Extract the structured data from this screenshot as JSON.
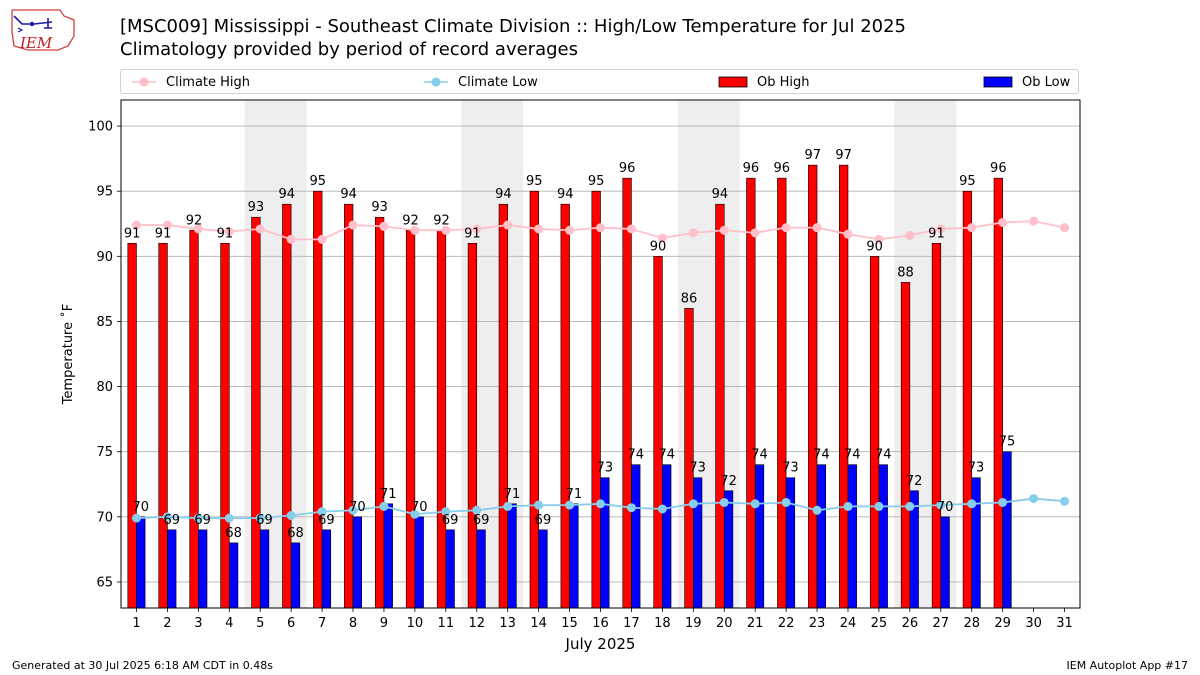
{
  "header": {
    "logo_text": "IEM",
    "title": "[MSC009] Mississippi - Southeast Climate Division :: High/Low Temperature for Jul 2025",
    "subtitle": "Climatology provided by period of record averages"
  },
  "legend": {
    "items": [
      {
        "label": "Climate High",
        "marker": "line-dot",
        "color": "#ffc0cb"
      },
      {
        "label": "Climate Low",
        "marker": "line-dot",
        "color": "#87ceeb"
      },
      {
        "label": "Ob High",
        "marker": "box",
        "color": "#ff0000"
      },
      {
        "label": "Ob Low",
        "marker": "box",
        "color": "#0000ff"
      }
    ]
  },
  "footer": {
    "generated": "Generated at 30 Jul 2025 6:18 AM CDT in 0.48s",
    "app": "IEM Autoplot App #17"
  },
  "chart_data": {
    "type": "bar",
    "xlabel": "July 2025",
    "ylabel": "Temperature ˚F",
    "ylim": [
      63,
      102
    ],
    "yticks": [
      65,
      70,
      75,
      80,
      85,
      90,
      95,
      100
    ],
    "grid": "horizontal",
    "legend_position": "top",
    "weekend_shading": [
      [
        5,
        6
      ],
      [
        12,
        13
      ],
      [
        19,
        20
      ],
      [
        26,
        27
      ]
    ],
    "x": [
      1,
      2,
      3,
      4,
      5,
      6,
      7,
      8,
      9,
      10,
      11,
      12,
      13,
      14,
      15,
      16,
      17,
      18,
      19,
      20,
      21,
      22,
      23,
      24,
      25,
      26,
      27,
      28,
      29,
      30,
      31
    ],
    "series": [
      {
        "name": "Ob High",
        "kind": "bar",
        "color": "#ff0000",
        "values": [
          91,
          91,
          92,
          91,
          93,
          94,
          95,
          94,
          93,
          92,
          92,
          91,
          94,
          95,
          94,
          95,
          96,
          90,
          86,
          94,
          96,
          96,
          97,
          97,
          90,
          88,
          91,
          95,
          96,
          null,
          null
        ]
      },
      {
        "name": "Ob Low",
        "kind": "bar",
        "color": "#0000ff",
        "values": [
          70,
          69,
          69,
          68,
          69,
          68,
          69,
          70,
          71,
          70,
          69,
          69,
          71,
          69,
          71,
          73,
          74,
          74,
          73,
          72,
          74,
          73,
          74,
          74,
          74,
          72,
          70,
          73,
          75,
          null,
          null
        ]
      },
      {
        "name": "Climate High",
        "kind": "line",
        "color": "#ffc0cb",
        "values": [
          92.4,
          92.4,
          92.1,
          91.9,
          92.1,
          91.3,
          91.3,
          92.4,
          92.3,
          92.0,
          92.0,
          92.1,
          92.4,
          92.1,
          92.0,
          92.2,
          92.1,
          91.4,
          91.8,
          92.0,
          91.8,
          92.2,
          92.2,
          91.7,
          91.3,
          91.6,
          92.1,
          92.2,
          92.6,
          92.7,
          92.2
        ]
      },
      {
        "name": "Climate Low",
        "kind": "line",
        "color": "#87ceeb",
        "values": [
          69.9,
          70.0,
          69.9,
          69.9,
          69.9,
          70.1,
          70.4,
          70.5,
          70.8,
          70.2,
          70.4,
          70.5,
          70.8,
          70.9,
          70.9,
          71.0,
          70.7,
          70.6,
          71.0,
          71.1,
          71.0,
          71.1,
          70.5,
          70.8,
          70.8,
          70.8,
          70.9,
          71.0,
          71.1,
          71.4,
          71.2
        ]
      }
    ]
  }
}
